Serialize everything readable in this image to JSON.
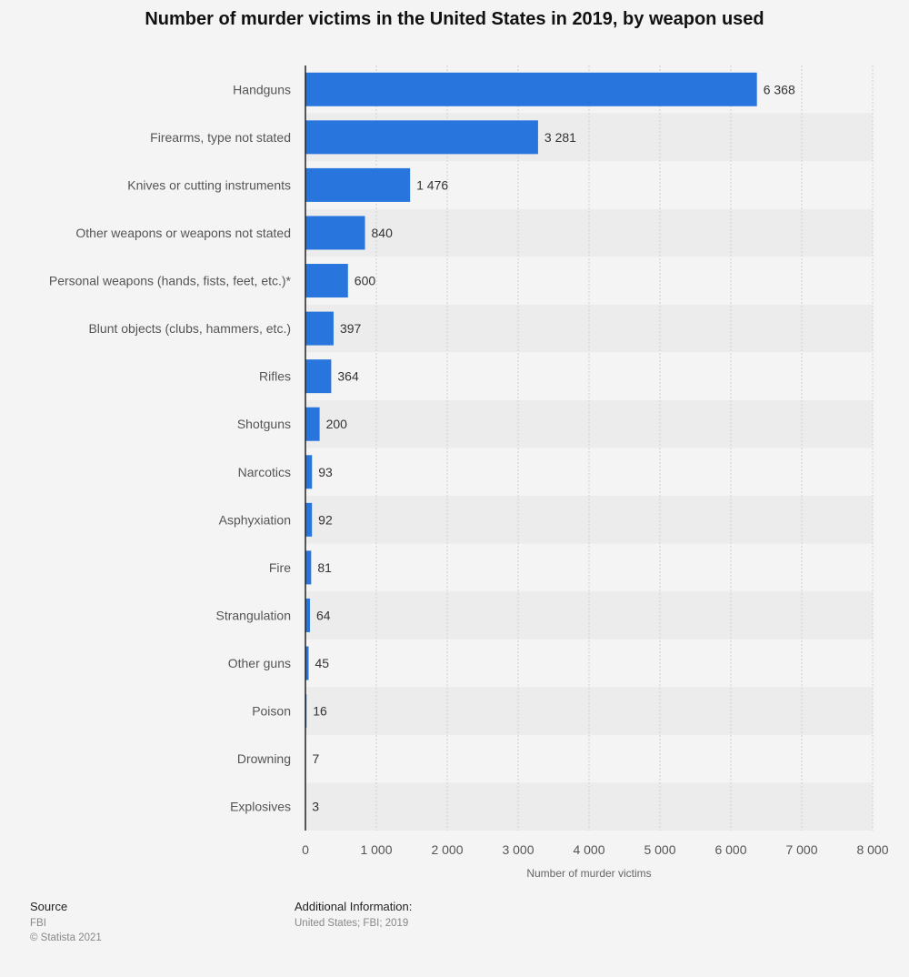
{
  "chart_data": {
    "type": "bar",
    "orientation": "horizontal",
    "title": "Number of murder victims in the United States in 2019, by weapon used",
    "categories": [
      "Handguns",
      "Firearms, type not stated",
      "Knives or cutting instruments",
      "Other weapons or weapons not stated",
      "Personal weapons (hands, fists, feet, etc.)*",
      "Blunt objects (clubs, hammers, etc.)",
      "Rifles",
      "Shotguns",
      "Narcotics",
      "Asphyxiation",
      "Fire",
      "Strangulation",
      "Other guns",
      "Poison",
      "Drowning",
      "Explosives"
    ],
    "values": [
      6368,
      3281,
      1476,
      840,
      600,
      397,
      364,
      200,
      93,
      92,
      81,
      64,
      45,
      16,
      7,
      3
    ],
    "value_labels": [
      "6 368",
      "3 281",
      "1 476",
      "840",
      "600",
      "397",
      "364",
      "200",
      "93",
      "92",
      "81",
      "64",
      "45",
      "16",
      "7",
      "3"
    ],
    "xlabel": "Number of murder victims",
    "ylabel": "",
    "xlim": [
      0,
      8000
    ],
    "ticks": [
      0,
      1000,
      2000,
      3000,
      4000,
      5000,
      6000,
      7000,
      8000
    ],
    "tick_labels": [
      "0",
      "1 000",
      "2 000",
      "3 000",
      "4 000",
      "5 000",
      "6 000",
      "7 000",
      "8 000"
    ],
    "grid": true,
    "bar_color": "#2876dd"
  },
  "footer": {
    "source_heading": "Source",
    "source_lines": [
      "FBI",
      "© Statista 2021"
    ],
    "additional_heading": "Additional Information:",
    "additional_text": "United States; FBI; 2019"
  }
}
